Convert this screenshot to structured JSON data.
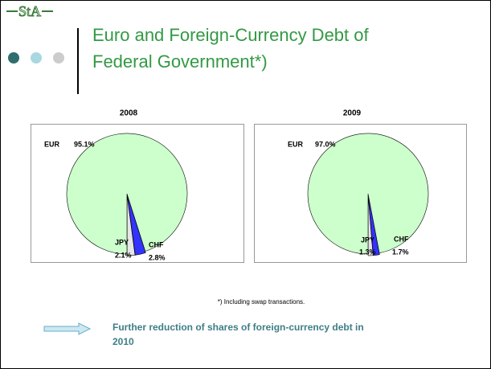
{
  "logo": "StA",
  "title": [
    "Euro and Foreign-Currency Debt of",
    "Federal Government*)"
  ],
  "footnote": "*) Including swap transactions.",
  "note": [
    "Further reduction of shares of foreign-currency debt in",
    "2010"
  ],
  "chart_data": [
    {
      "type": "pie",
      "title": "2008",
      "categories": [
        "EUR",
        "JPY",
        "CHF"
      ],
      "values": [
        95.1,
        2.1,
        2.8
      ],
      "value_labels": [
        "95.1%",
        "2.1%",
        "2.8%"
      ],
      "colors": [
        "#ccffcc",
        "#e6e6e6",
        "#3333ff"
      ]
    },
    {
      "type": "pie",
      "title": "2009",
      "categories": [
        "EUR",
        "JPY",
        "CHF"
      ],
      "values": [
        97.0,
        1.3,
        1.7
      ],
      "value_labels": [
        "97.0%",
        "1.3%",
        "1.7%"
      ],
      "colors": [
        "#ccffcc",
        "#e6e6e6",
        "#3333ff"
      ]
    }
  ]
}
